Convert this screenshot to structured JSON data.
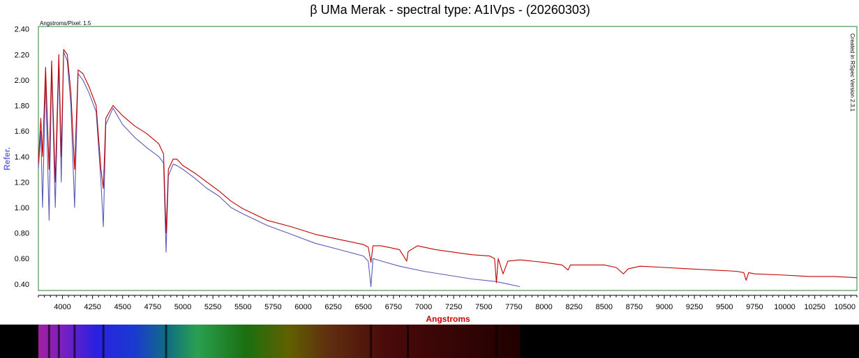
{
  "chart_data": {
    "type": "line",
    "title": "β UMa Merak - spectral type: A1IVps - (20260303)",
    "xlabel": "Angstroms",
    "ylabel": "Refer.",
    "subtitle_left": "Angstroms/Pixel: 1.5",
    "side_note": "Created in RSpec Version 2.3.1",
    "xlim": [
      3800,
      10600
    ],
    "ylim": [
      0.35,
      2.42
    ],
    "x_ticks": [
      4000,
      4250,
      4500,
      4750,
      5000,
      5250,
      5500,
      5750,
      6000,
      6250,
      6500,
      6750,
      7000,
      7250,
      7500,
      7750,
      8000,
      8250,
      8500,
      8750,
      9000,
      9250,
      9500,
      9750,
      10000,
      10250,
      10500
    ],
    "y_ticks": [
      "0.40",
      "0.60",
      "0.80",
      "1.00",
      "1.20",
      "1.40",
      "1.60",
      "1.80",
      "2.00",
      "2.20",
      "2.40"
    ],
    "grid": false,
    "colors": {
      "reference": "#c00000",
      "observed": "#5a5ab8",
      "frame": "#2e7d32"
    },
    "series": [
      {
        "name": "",
        "color": "#c00000",
        "x": [
          3800,
          3820,
          3835,
          3860,
          3889,
          3910,
          3940,
          3970,
          3990,
          4010,
          4040,
          4070,
          4101,
          4130,
          4170,
          4220,
          4280,
          4320,
          4340,
          4360,
          4420,
          4500,
          4600,
          4700,
          4800,
          4840,
          4861,
          4880,
          4920,
          4950,
          5000,
          5100,
          5200,
          5300,
          5400,
          5500,
          5700,
          5900,
          6100,
          6300,
          6500,
          6540,
          6563,
          6580,
          6650,
          6800,
          6860,
          6870,
          6880,
          6950,
          7100,
          7250,
          7400,
          7550,
          7590,
          7605,
          7620,
          7660,
          7700,
          7800,
          8000,
          8150,
          8200,
          8220,
          8300,
          8500,
          8600,
          8660,
          8700,
          8800,
          9000,
          9200,
          9400,
          9600,
          9660,
          9680,
          9700,
          9750,
          10000,
          10200,
          10400,
          10600
        ],
        "y": [
          1.35,
          1.7,
          1.4,
          2.1,
          1.3,
          2.15,
          1.2,
          2.2,
          1.4,
          2.24,
          2.2,
          1.9,
          1.3,
          2.08,
          2.05,
          1.95,
          1.8,
          1.3,
          1.15,
          1.7,
          1.8,
          1.72,
          1.64,
          1.58,
          1.5,
          1.42,
          0.8,
          1.3,
          1.38,
          1.38,
          1.33,
          1.27,
          1.2,
          1.13,
          1.05,
          0.99,
          0.9,
          0.85,
          0.79,
          0.75,
          0.71,
          0.69,
          0.57,
          0.7,
          0.7,
          0.67,
          0.58,
          0.65,
          0.66,
          0.7,
          0.67,
          0.65,
          0.63,
          0.62,
          0.6,
          0.41,
          0.6,
          0.48,
          0.58,
          0.59,
          0.57,
          0.55,
          0.51,
          0.55,
          0.55,
          0.55,
          0.53,
          0.48,
          0.52,
          0.54,
          0.53,
          0.52,
          0.51,
          0.5,
          0.49,
          0.43,
          0.49,
          0.48,
          0.47,
          0.46,
          0.46,
          0.45
        ]
      },
      {
        "name": "",
        "color": "#5a5ab8",
        "x": [
          3800,
          3820,
          3835,
          3860,
          3889,
          3910,
          3940,
          3970,
          3990,
          4010,
          4040,
          4070,
          4101,
          4130,
          4170,
          4220,
          4280,
          4320,
          4340,
          4360,
          4420,
          4500,
          4600,
          4700,
          4800,
          4840,
          4861,
          4880,
          4920,
          4950,
          5000,
          5100,
          5200,
          5300,
          5400,
          5500,
          5700,
          5900,
          6100,
          6300,
          6500,
          6540,
          6563,
          6580,
          6650,
          6800,
          7000,
          7200,
          7400,
          7600,
          7700,
          7800
        ],
        "y": [
          1.3,
          1.6,
          1.0,
          2.0,
          0.9,
          2.1,
          1.0,
          2.15,
          1.2,
          2.22,
          2.15,
          1.8,
          1.0,
          2.05,
          2.0,
          1.9,
          1.75,
          1.2,
          0.85,
          1.65,
          1.78,
          1.65,
          1.55,
          1.47,
          1.4,
          1.35,
          0.65,
          1.25,
          1.34,
          1.33,
          1.3,
          1.23,
          1.15,
          1.09,
          1.0,
          0.95,
          0.86,
          0.79,
          0.72,
          0.67,
          0.62,
          0.58,
          0.38,
          0.6,
          0.58,
          0.54,
          0.5,
          0.47,
          0.44,
          0.42,
          0.4,
          0.38
        ]
      }
    ]
  },
  "spectrum_strip": {
    "x_start": 3800,
    "x_end": 7800,
    "lines": [
      3889,
      3970,
      4101,
      4340,
      4861,
      6563,
      6870,
      7605
    ]
  }
}
